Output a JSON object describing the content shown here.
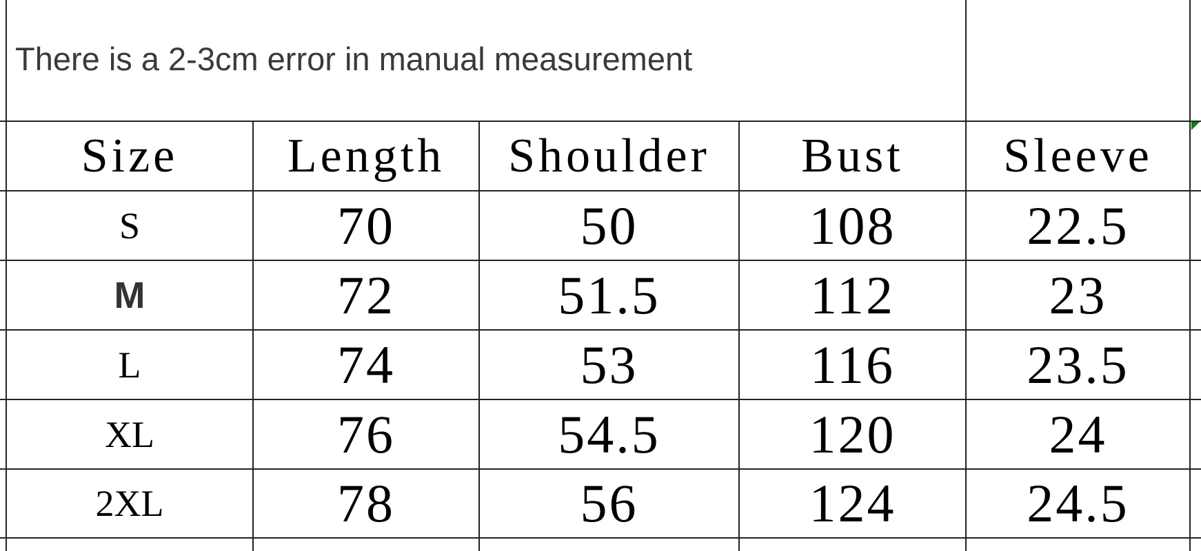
{
  "note": "There is a 2-3cm error in manual measurement",
  "headers": [
    "Size",
    "Length",
    "Shoulder",
    "Bust",
    "Sleeve"
  ],
  "rows": [
    [
      "S",
      "70",
      "50",
      "108",
      "22.5"
    ],
    [
      "M",
      "72",
      "51.5",
      "112",
      "23"
    ],
    [
      "L",
      "74",
      "53",
      "116",
      "23.5"
    ],
    [
      "XL",
      "76",
      "54.5",
      "120",
      "24"
    ],
    [
      "2XL",
      "78",
      "56",
      "124",
      "24.5"
    ]
  ],
  "colors": {
    "grid": "#222222",
    "note_text": "#3a3a3a",
    "cell_marker": "#0a7d1e"
  }
}
